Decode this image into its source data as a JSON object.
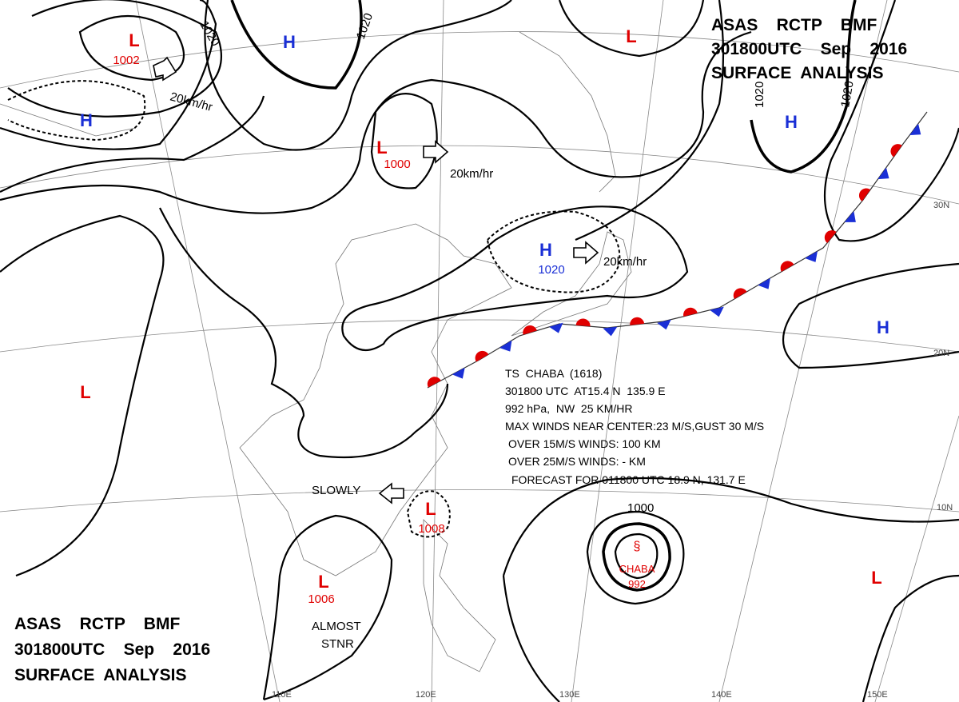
{
  "header_top": [
    "ASAS    RCTP    BMF",
    "301800UTC    Sep    2016",
    "SURFACE  ANALYSIS"
  ],
  "header_bottom": [
    "ASAS    RCTP    BMF",
    "301800UTC    Sep    2016",
    "SURFACE  ANALYSIS"
  ],
  "pressure_centers": [
    {
      "label": "L",
      "value": "1002"
    },
    {
      "label": "H"
    },
    {
      "label": "H"
    },
    {
      "label": "L",
      "value": "1000"
    },
    {
      "label": "L"
    },
    {
      "label": "H"
    },
    {
      "label": "H",
      "value": "1020"
    },
    {
      "label": "H"
    },
    {
      "label": "L"
    },
    {
      "label": "L",
      "value": "1008"
    },
    {
      "label": "L",
      "value": "1006"
    },
    {
      "label": "L"
    }
  ],
  "typhoon": {
    "name": "CHABA",
    "pressure": "992"
  },
  "isobar_labels": [
    "1020",
    "1020",
    "1020",
    "1020",
    "1000"
  ],
  "motion_labels": [
    "20km/hr",
    "20km/hr",
    "20km/hr",
    "SLOWLY",
    "ALMOST",
    "STNR"
  ],
  "typhoon_info": [
    "TS  CHABA  (1618)",
    "301800 UTC  AT15.4 N  135.9 E",
    "992 hPa,  NW  25 KM/HR",
    "MAX WINDS NEAR CENTER:23 M/S,GUST 30 M/S",
    "OVER 15M/S WINDS: 100 KM",
    "OVER 25M/S WINDS: - KM",
    "FORECAST FOR 011800 UTC 18.9 N, 131.7 E"
  ],
  "latitudes": [
    "30N",
    "20N",
    "10N"
  ],
  "longitudes": [
    "110E",
    "120E",
    "130E",
    "140E",
    "150E"
  ]
}
